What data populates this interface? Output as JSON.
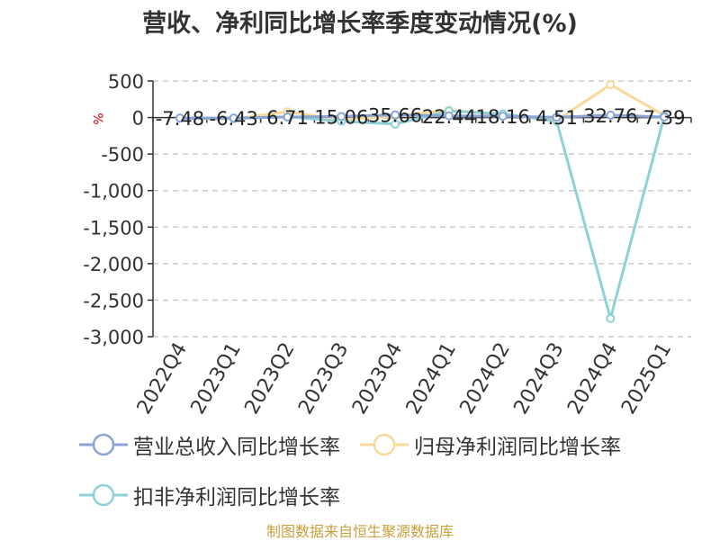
{
  "chart_data": {
    "type": "line",
    "title": "营收、净利同比增长率季度变动情况(%)",
    "ylabel": "%",
    "xlabel": "",
    "ylim": [
      -3000,
      500
    ],
    "yticks": [
      500,
      0,
      -500,
      -1000,
      -1500,
      -2000,
      -2500,
      -3000
    ],
    "ytick_labels": [
      "500",
      "0",
      "-500",
      "-1,000",
      "-1,500",
      "-2,000",
      "-2,500",
      "-3,000"
    ],
    "grid": true,
    "legend_position": "bottom",
    "categories": [
      "2022Q4",
      "2023Q1",
      "2023Q2",
      "2023Q3",
      "2023Q4",
      "2024Q1",
      "2024Q2",
      "2024Q3",
      "2024Q4",
      "2025Q1"
    ],
    "series": [
      {
        "name": "营业总收入同比增长率",
        "color": "#8aa4d6",
        "values": [
          -7.48,
          -6.43,
          6.71,
          15.06,
          35.66,
          22.44,
          18.16,
          4.51,
          32.76,
          7.39
        ],
        "labels": [
          "-7.48",
          "-6.43",
          "6.71",
          "15.06",
          "35.66",
          "22.44",
          "18.16",
          "4.51",
          "32.76",
          "7.39"
        ]
      },
      {
        "name": "归母净利润同比增长率",
        "color": "#fad89a",
        "values": [
          -10,
          -20,
          80,
          -30,
          20,
          100,
          40,
          -40,
          450,
          30
        ]
      },
      {
        "name": "扣非净利润同比增长率",
        "color": "#8dd1d6",
        "values": [
          -10,
          -15,
          10,
          -50,
          -90,
          90,
          50,
          -50,
          -2750,
          20
        ]
      }
    ],
    "source_note": "制图数据来自恒生聚源数据库"
  }
}
